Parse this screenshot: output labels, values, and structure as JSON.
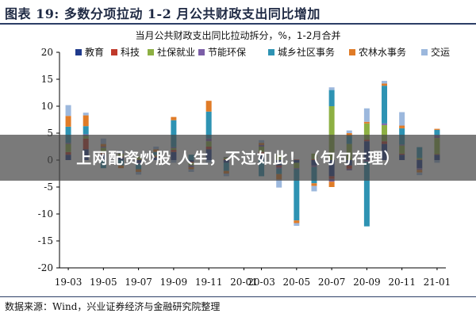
{
  "header": {
    "title": "图表 19:  多数分项拉动 1-2 月公共财政支出同比增加"
  },
  "overlay": {
    "text": "上网配资炒股 人生，不过如此！（句句在理）"
  },
  "source": {
    "text": "数据来源：Wind，兴业证券经济与金融研究院整理"
  },
  "chart_data": {
    "type": "bar",
    "stacked": true,
    "title": "当月公共财政支出同比拉动拆分，%，1-2月合并",
    "ylim": [
      -20,
      20
    ],
    "yticks": [
      20,
      15,
      10,
      5,
      0,
      -5,
      -10,
      -15,
      -20
    ],
    "grid": false,
    "legend_position": "top",
    "categories": [
      "19-03",
      "19-04",
      "19-05",
      "19-06",
      "19-07",
      "19-08",
      "19-09",
      "19-10",
      "19-11",
      "19-12",
      "20-01",
      "20-03",
      "20-04",
      "20-05",
      "20-06",
      "20-07",
      "20-08",
      "20-09",
      "20-10",
      "20-11",
      "20-12",
      "21-01"
    ],
    "xtick_labels": [
      "19-03",
      "19-05",
      "19-07",
      "19-09",
      "19-11",
      "20-01",
      "20-03",
      "20-05",
      "20-07",
      "20-09",
      "20-11",
      "21-01"
    ],
    "xtick_indices": [
      0,
      2,
      4,
      6,
      8,
      10,
      11,
      13,
      15,
      17,
      19,
      21
    ],
    "series": [
      {
        "name": "教育",
        "color": "#1f3a8c",
        "values": [
          1.0,
          2.0,
          1.0,
          0.5,
          -0.5,
          0.5,
          1.5,
          -0.3,
          2.0,
          -0.5,
          0,
          1.0,
          -1.0,
          -0.5,
          -1.0,
          -3.0,
          -1.0,
          3.5,
          3.0,
          1.0,
          -1.5,
          1.0
        ]
      },
      {
        "name": "科技",
        "color": "#c0392b",
        "values": [
          0.5,
          2.0,
          0.3,
          0.2,
          0.1,
          0.2,
          0.4,
          -0.2,
          0.5,
          0.2,
          0,
          0.5,
          -0.3,
          0.1,
          0.2,
          -0.5,
          -0.6,
          0.3,
          0.5,
          0.2,
          0.1,
          0.1
        ]
      },
      {
        "name": "社保就业",
        "color": "#8db043",
        "values": [
          1.5,
          0.5,
          1.0,
          0.5,
          0.5,
          0.2,
          0.3,
          -0.5,
          1.0,
          0.3,
          0,
          1.0,
          1.0,
          -1.0,
          1.0,
          10.0,
          3.0,
          3.0,
          3.0,
          1.5,
          0.3,
          3.0
        ]
      },
      {
        "name": "节能环保",
        "color": "#7b5ea7",
        "values": [
          0.2,
          0.3,
          0.2,
          0.1,
          -0.2,
          0.1,
          0.2,
          -0.3,
          0.5,
          0.1,
          0,
          0.3,
          -0.3,
          -0.2,
          -0.3,
          -0.5,
          -0.3,
          -0.3,
          0.3,
          0.2,
          -0.3,
          0.5
        ]
      },
      {
        "name": "城乡社区事务",
        "color": "#2e93b3",
        "values": [
          3.0,
          1.5,
          -1.5,
          -1.0,
          -1.0,
          0.5,
          5.0,
          1.0,
          5.0,
          -1.5,
          0,
          -3.0,
          -1.0,
          -9.5,
          -3.0,
          3.0,
          1.5,
          -12.0,
          7.0,
          3.0,
          2.0,
          1.0
        ]
      },
      {
        "name": "农林水事务",
        "color": "#e07b27",
        "values": [
          2.0,
          2.0,
          0.5,
          -0.5,
          -0.5,
          0.5,
          0.6,
          -0.4,
          2.0,
          -0.5,
          0,
          0.4,
          -1.0,
          -0.5,
          -0.5,
          -1.0,
          0.5,
          0.3,
          0.4,
          0.5,
          -0.5,
          0.2
        ]
      },
      {
        "name": "交运",
        "color": "#9cb8dd",
        "values": [
          2.0,
          0.5,
          1.0,
          0.5,
          -0.5,
          0.5,
          -0.5,
          -0.5,
          -0.5,
          -0.5,
          0,
          0.5,
          -1.5,
          -0.5,
          -1.0,
          0.5,
          0.5,
          2.5,
          0.5,
          2.5,
          -0.5,
          -0.5
        ]
      }
    ]
  }
}
